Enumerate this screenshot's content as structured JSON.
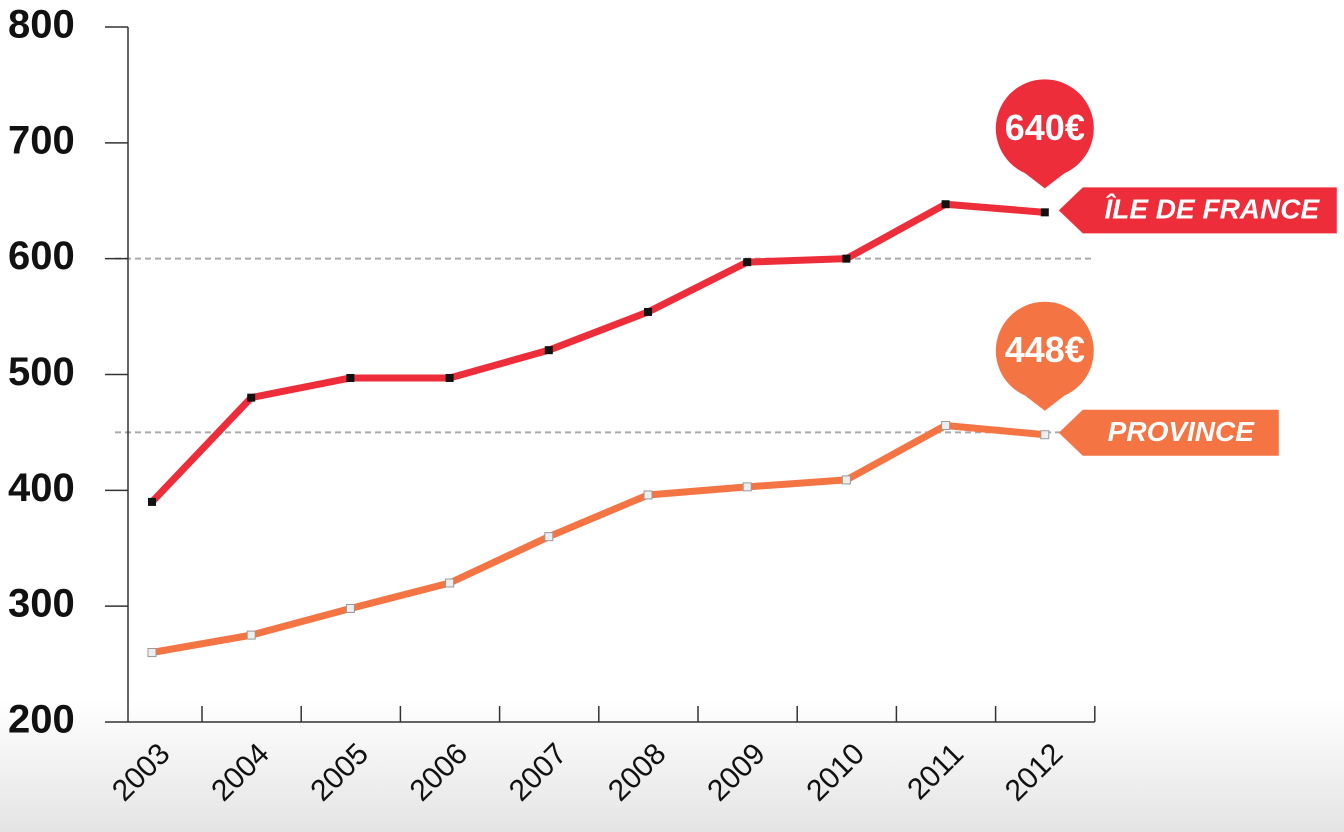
{
  "chart_data": {
    "type": "line",
    "categories": [
      "2003",
      "2004",
      "2005",
      "2006",
      "2007",
      "2008",
      "2009",
      "2010",
      "2011",
      "2012"
    ],
    "series": [
      {
        "name": "ÎLE DE FRANCE",
        "color": "#ee2d3a",
        "marker_color": "#111111",
        "values": [
          390,
          480,
          497,
          497,
          521,
          554,
          597,
          600,
          647,
          640
        ],
        "value_labels": [
          null,
          null,
          null,
          null,
          null,
          null,
          null,
          null,
          null,
          "640€"
        ]
      },
      {
        "name": "PROVINCE",
        "color": "#f47444",
        "marker_color": "#eeeeee",
        "values": [
          260,
          275,
          298,
          320,
          360,
          396,
          403,
          409,
          456,
          448
        ],
        "value_labels": [
          null,
          null,
          null,
          null,
          null,
          null,
          null,
          null,
          null,
          "448€"
        ]
      }
    ],
    "hlines": [
      600,
      450
    ],
    "ylim": [
      200,
      800
    ],
    "yticks": [
      200,
      300,
      400,
      500,
      600,
      700,
      800
    ]
  }
}
